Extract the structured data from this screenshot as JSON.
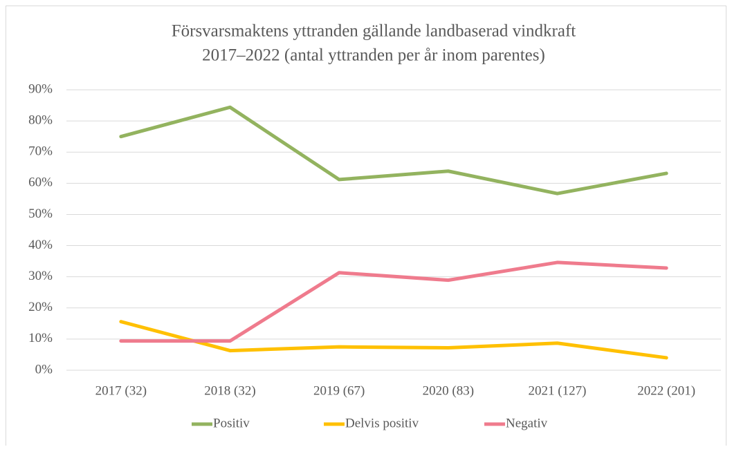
{
  "chart_data": {
    "type": "line",
    "title": [
      "Försvarsmaktens yttranden gällande landbaserad vindkraft",
      "2017–2022 (antal yttranden per år inom parentes)"
    ],
    "categories": [
      "2017 (32)",
      "2018 (32)",
      "2019 (67)",
      "2020 (83)",
      "2021 (127)",
      "2022 (201)"
    ],
    "series": [
      {
        "name": "Positiv",
        "color": "#93b35f",
        "values": [
          75,
          84.4,
          61.2,
          63.9,
          56.7,
          63.2
        ]
      },
      {
        "name": "Delvis positiv",
        "color": "#ffc000",
        "values": [
          15.6,
          6.3,
          7.5,
          7.2,
          8.7,
          4.0
        ]
      },
      {
        "name": "Negativ",
        "color": "#ef7b8d",
        "values": [
          9.4,
          9.4,
          31.3,
          28.9,
          34.6,
          32.8
        ]
      }
    ],
    "ylim": [
      0,
      90
    ],
    "yticks": [
      {
        "value": 0,
        "label": "0%"
      },
      {
        "value": 10,
        "label": "10%"
      },
      {
        "value": 20,
        "label": "20%"
      },
      {
        "value": 30,
        "label": "30%"
      },
      {
        "value": 40,
        "label": "40%"
      },
      {
        "value": 50,
        "label": "50%"
      },
      {
        "value": 60,
        "label": "60%"
      },
      {
        "value": 70,
        "label": "70%"
      },
      {
        "value": 80,
        "label": "80%"
      },
      {
        "value": 90,
        "label": "90%"
      }
    ],
    "grid": true,
    "legend": "bottom"
  }
}
